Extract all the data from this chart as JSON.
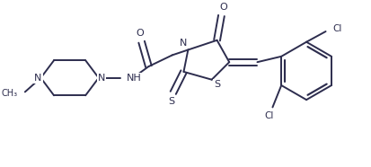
{
  "background": "#ffffff",
  "line_color": "#2d2d4e",
  "line_width": 1.4,
  "figsize": [
    4.14,
    1.86
  ],
  "dpi": 100,
  "xlim": [
    0,
    414
  ],
  "ylim": [
    0,
    186
  ]
}
